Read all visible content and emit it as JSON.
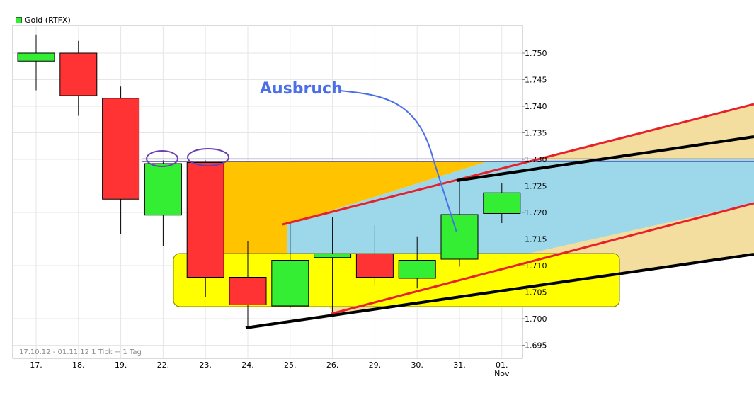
{
  "chart_data": {
    "type": "candlestick",
    "title": "",
    "legend": {
      "label": "Gold (RTFX)",
      "placement": "top-left",
      "color": "#33ee33"
    },
    "footer": "17.10.12 - 01.11.12   1 Tick = 1 Tag",
    "x_labels": [
      "17.",
      "18.",
      "19.",
      "22.",
      "23.",
      "24.",
      "25.",
      "26.",
      "29.",
      "30.",
      "31.",
      "01.",
      "Nov"
    ],
    "y_ticks": [
      "1.750",
      "1.745",
      "1.740",
      "1.735",
      "1.730",
      "1.725",
      "1.720",
      "1.715",
      "1.710",
      "1.705",
      "1.700",
      "1.695"
    ],
    "y_tick_values": [
      1.75,
      1.745,
      1.74,
      1.735,
      1.73,
      1.725,
      1.72,
      1.715,
      1.71,
      1.705,
      1.7,
      1.695
    ],
    "ylim": [
      1.6935,
      1.7535
    ],
    "grid": true,
    "candles": [
      {
        "date": "17.",
        "open": 1.7485,
        "high": 1.7535,
        "low": 1.743,
        "close": 1.75
      },
      {
        "date": "18.",
        "open": 1.75,
        "high": 1.7523,
        "low": 1.7382,
        "close": 1.742
      },
      {
        "date": "19.",
        "open": 1.7415,
        "high": 1.7437,
        "low": 1.716,
        "close": 1.7225
      },
      {
        "date": "22.",
        "open": 1.7195,
        "high": 1.7298,
        "low": 1.7136,
        "close": 1.7292
      },
      {
        "date": "23.",
        "open": 1.7294,
        "high": 1.7298,
        "low": 1.704,
        "close": 1.7078
      },
      {
        "date": "24.",
        "open": 1.7078,
        "high": 1.7146,
        "low": 1.6985,
        "close": 1.7026
      },
      {
        "date": "25.",
        "open": 1.7024,
        "high": 1.718,
        "low": 1.702,
        "close": 1.711
      },
      {
        "date": "26.",
        "open": 1.7115,
        "high": 1.7192,
        "low": 1.7008,
        "close": 1.7122
      },
      {
        "date": "29.",
        "open": 1.7122,
        "high": 1.7176,
        "low": 1.7062,
        "close": 1.7078
      },
      {
        "date": "30.",
        "open": 1.7076,
        "high": 1.7155,
        "low": 1.7057,
        "close": 1.711
      },
      {
        "date": "31.",
        "open": 1.7112,
        "high": 1.7259,
        "low": 1.7098,
        "close": 1.7196
      },
      {
        "date": "01.",
        "open": 1.7198,
        "high": 1.7256,
        "low": 1.718,
        "close": 1.7237
      }
    ],
    "resistance_level": 1.7297,
    "annotations": [
      {
        "type": "text",
        "text": "Ausbruch",
        "color": "#4a6fe8"
      }
    ],
    "colors": {
      "up": "#33ee33",
      "down": "#ff3333",
      "range_box": "#ffff00",
      "orange_zone": "#ffc300",
      "blue_channel": "#9dd8ea",
      "tan_channel": "#f3dea0",
      "trend_red": "#e8202a",
      "trend_black": "#000000",
      "ellipse": "#6a3fb0",
      "annotation_arrow": "#4a6fe8"
    }
  }
}
